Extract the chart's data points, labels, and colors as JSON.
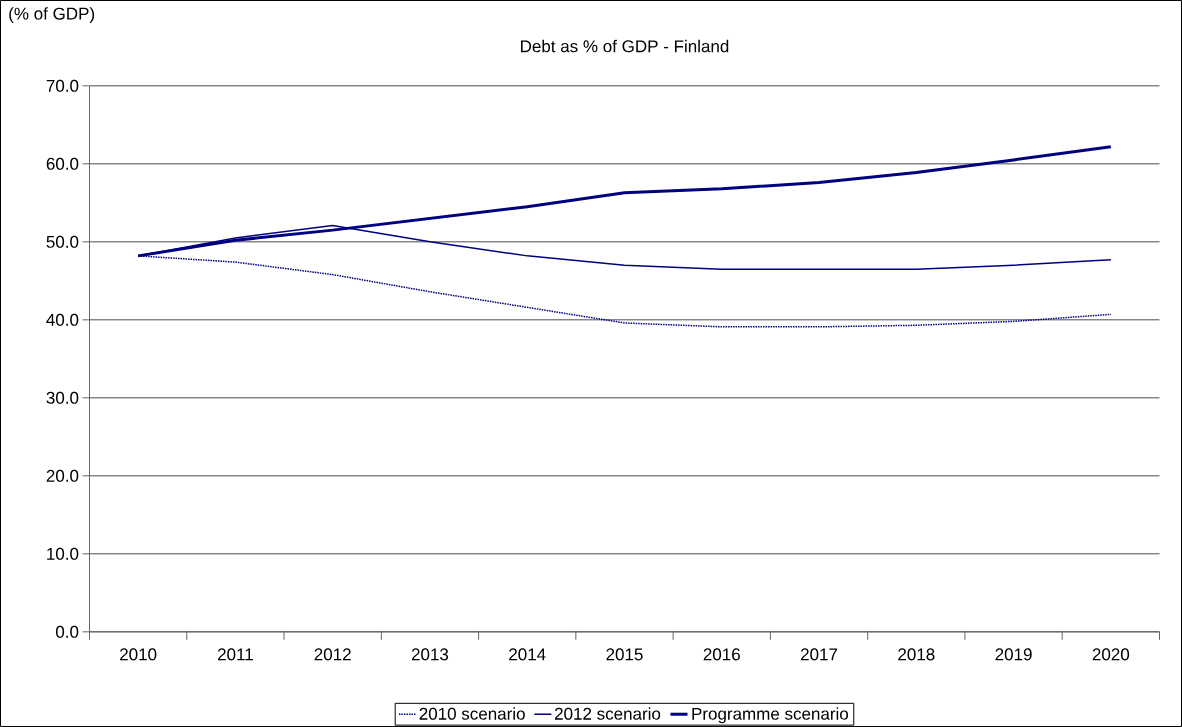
{
  "chart_data": {
    "type": "line",
    "title": "Debt as % of GDP - Finland",
    "ylabel": "(% of GDP)",
    "categories": [
      "2010",
      "2011",
      "2012",
      "2013",
      "2014",
      "2015",
      "2016",
      "2017",
      "2018",
      "2019",
      "2020"
    ],
    "series": [
      {
        "name": "2010 scenario",
        "color": "#000080",
        "line_style": "dotted",
        "values": [
          48.2,
          47.4,
          45.8,
          43.6,
          41.6,
          39.6,
          39.1,
          39.1,
          39.3,
          39.8,
          40.7
        ]
      },
      {
        "name": "2012 scenario",
        "color": "#000080",
        "line_style": "solid",
        "values": [
          48.2,
          50.5,
          52.1,
          50.0,
          48.2,
          47.0,
          46.5,
          46.5,
          46.5,
          47.0,
          47.7
        ]
      },
      {
        "name": "Programme scenario",
        "color": "#000080",
        "line_style": "solid",
        "values": [
          48.2,
          50.2,
          51.5,
          53.0,
          54.5,
          56.3,
          56.8,
          57.6,
          58.9,
          60.5,
          62.2
        ]
      }
    ],
    "ylim": [
      0,
      70
    ],
    "yticks": [
      {
        "value": 0,
        "label": "0.0"
      },
      {
        "value": 10,
        "label": "10.0"
      },
      {
        "value": 20,
        "label": "20.0"
      },
      {
        "value": 30,
        "label": "30.0"
      },
      {
        "value": 40,
        "label": "40.0"
      },
      {
        "value": 50,
        "label": "50.0"
      },
      {
        "value": 60,
        "label": "60.0"
      },
      {
        "value": 70,
        "label": "70.0"
      }
    ],
    "grid": "y",
    "legend": "bottom",
    "marker": "none"
  }
}
